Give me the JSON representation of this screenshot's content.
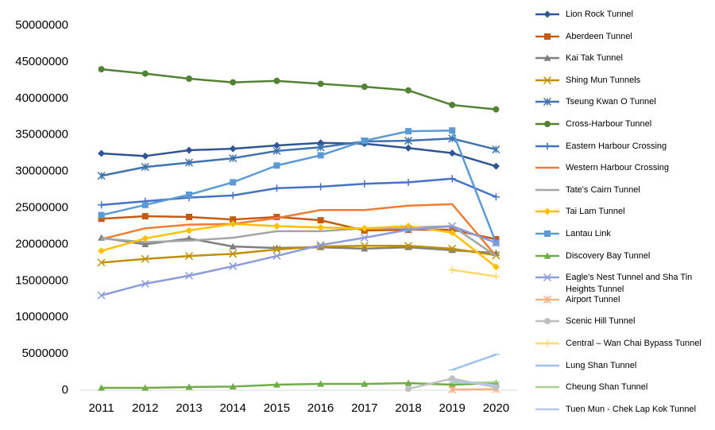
{
  "chart_data": {
    "type": "line",
    "categories": [
      "2011",
      "2012",
      "2013",
      "2014",
      "2015",
      "2016",
      "2017",
      "2018",
      "2019",
      "2020"
    ],
    "ylim": [
      0,
      50000000
    ],
    "yticks": [
      0,
      5000000,
      10000000,
      15000000,
      20000000,
      25000000,
      30000000,
      35000000,
      40000000,
      45000000,
      50000000
    ],
    "grid": false,
    "legend": "right",
    "series": [
      {
        "name": "Lion Rock Tunnel",
        "color": "#2F5597",
        "marker": "diamond",
        "values": [
          32460000,
          32100000,
          32900000,
          33100000,
          33550000,
          33900000,
          33800000,
          33200000,
          32500000,
          30700000
        ]
      },
      {
        "name": "Aberdeen Tunnel",
        "color": "#C55A11",
        "marker": "square",
        "values": [
          23500000,
          23850000,
          23750000,
          23400000,
          23750000,
          23300000,
          21900000,
          22000000,
          22000000,
          20700000
        ]
      },
      {
        "name": "Kai Tak Tunnel",
        "color": "#7F7F7F",
        "marker": "triangle",
        "values": [
          20900000,
          20000000,
          20800000,
          19700000,
          19500000,
          19600000,
          19400000,
          19600000,
          19200000,
          18800000
        ]
      },
      {
        "name": "Shing Mun Tunnels",
        "color": "#BF9000",
        "marker": "x",
        "values": [
          17500000,
          18000000,
          18400000,
          18700000,
          19300000,
          19700000,
          19800000,
          19800000,
          19400000,
          18500000
        ]
      },
      {
        "name": "Tseung Kwan O Tunnel",
        "color": "#3F72AF",
        "marker": "star",
        "values": [
          29400000,
          30600000,
          31200000,
          31800000,
          32800000,
          33300000,
          34100000,
          34200000,
          34500000,
          33000000
        ]
      },
      {
        "name": "Cross-Harbour Tunnel",
        "color": "#548235",
        "marker": "circle",
        "values": [
          44000000,
          43400000,
          42700000,
          42200000,
          42400000,
          42000000,
          41600000,
          41100000,
          39100000,
          38500000
        ]
      },
      {
        "name": "Eastern Harbour Crossing",
        "color": "#4472C4",
        "marker": "plus",
        "values": [
          25400000,
          25900000,
          26400000,
          26700000,
          27700000,
          27900000,
          28300000,
          28500000,
          29000000,
          26500000
        ]
      },
      {
        "name": "Western Harbour Crossing",
        "color": "#ED7D31",
        "marker": "none",
        "values": [
          20700000,
          22200000,
          22700000,
          22800000,
          23600000,
          24700000,
          24700000,
          25300000,
          25500000,
          18400000
        ]
      },
      {
        "name": "Tate's Cairn Tunnel",
        "color": "#A5A5A5",
        "marker": "none",
        "values": [
          20800000,
          20300000,
          20500000,
          20900000,
          21800000,
          21800000,
          22200000,
          22300000,
          22500000,
          18400000
        ]
      },
      {
        "name": "Tai Lam Tunnel",
        "color": "#FFC000",
        "marker": "diamond",
        "values": [
          19100000,
          20800000,
          21900000,
          22800000,
          22500000,
          22300000,
          22200000,
          22500000,
          21600000,
          16900000
        ]
      },
      {
        "name": "Lantau Link",
        "color": "#5B9BD5",
        "marker": "square",
        "values": [
          24000000,
          25400000,
          26800000,
          28500000,
          30800000,
          32200000,
          34200000,
          35500000,
          35600000,
          20200000
        ]
      },
      {
        "name": "Discovery Bay Tunnel",
        "color": "#70AD47",
        "marker": "triangle",
        "values": [
          330000,
          330000,
          440000,
          500000,
          760000,
          870000,
          870000,
          980000,
          760000,
          980000
        ]
      },
      {
        "name": "Eagle's Nest Tunnel and Sha Tin Heights Tunnel",
        "color": "#8E9BDB",
        "marker": "x",
        "values": [
          13000000,
          14600000,
          15700000,
          17000000,
          18400000,
          19900000,
          20900000,
          22000000,
          22500000,
          20200000
        ]
      },
      {
        "name": "Airport Tunnel",
        "color": "#F4B183",
        "marker": "star",
        "values": [
          null,
          null,
          null,
          null,
          null,
          null,
          null,
          null,
          100000,
          150000
        ]
      },
      {
        "name": "Scenic Hill Tunnel",
        "color": "#BFBFBF",
        "marker": "circle",
        "values": [
          null,
          null,
          null,
          null,
          null,
          null,
          null,
          200000,
          1600000,
          400000
        ]
      },
      {
        "name": "Central – Wan Chai Bypass Tunnel",
        "color": "#FFD966",
        "marker": "plus",
        "values": [
          null,
          null,
          null,
          null,
          null,
          null,
          null,
          null,
          16500000,
          15600000
        ]
      },
      {
        "name": "Lung Shan Tunnel",
        "color": "#9DC3E6",
        "marker": "dash",
        "values": [
          null,
          null,
          null,
          null,
          null,
          null,
          null,
          null,
          2800000,
          4900000
        ]
      },
      {
        "name": "Cheung Shan Tunnel",
        "color": "#A9D18E",
        "marker": "dash",
        "values": [
          null,
          null,
          null,
          null,
          null,
          null,
          null,
          null,
          1000000,
          1100000
        ]
      },
      {
        "name": "Tuen Mun - Chek Lap Kok Tunnel",
        "color": "#B4C7E7",
        "marker": "dash",
        "values": [
          null,
          null,
          null,
          null,
          null,
          null,
          null,
          null,
          1300000,
          650000
        ]
      }
    ]
  }
}
